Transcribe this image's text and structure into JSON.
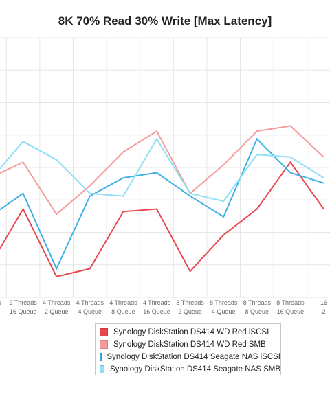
{
  "chart_data": {
    "type": "line",
    "title": "8K 70% Read 30% Write [Max Latency]",
    "categories": [
      [
        "Threads",
        "Queue"
      ],
      [
        "2 Threads",
        "16 Queue"
      ],
      [
        "4 Threads",
        "2 Queue"
      ],
      [
        "4 Threads",
        "4 Queue"
      ],
      [
        "4 Threads",
        "8 Queue"
      ],
      [
        "4 Threads",
        "16 Queue"
      ],
      [
        "8 Threads",
        "2 Queue"
      ],
      [
        "8 Threads",
        "4 Queue"
      ],
      [
        "8 Threads",
        "8 Queue"
      ],
      [
        "8 Threads",
        "16 Queue"
      ],
      [
        "16",
        "2"
      ]
    ],
    "ylim": [
      0,
      10
    ],
    "grid": true,
    "legend_position": "bottom",
    "series": [
      {
        "name": "Synology DiskStation DS414 WD Red iSCSI",
        "color": "#e8474f",
        "values": [
          1.2,
          3.4,
          0.8,
          1.1,
          3.3,
          3.4,
          1.0,
          2.4,
          3.4,
          5.2,
          3.4
        ]
      },
      {
        "name": "Synology DiskStation DS414 WD Red SMB",
        "color": "#f59b9b",
        "values": [
          4.6,
          5.2,
          3.2,
          4.3,
          5.6,
          6.4,
          4.0,
          5.1,
          6.4,
          6.6,
          5.4
        ]
      },
      {
        "name": "Synology DiskStation DS414 Seagate NAS iSCSI",
        "color": "#3fb0e4",
        "values": [
          3.1,
          4.0,
          1.1,
          3.9,
          4.6,
          4.8,
          3.9,
          3.1,
          6.1,
          4.8,
          4.4
        ]
      },
      {
        "name": "Synology DiskStation DS414 Seagate NAS SMB",
        "color": "#8ddff5",
        "values": [
          4.5,
          6.0,
          5.3,
          4.0,
          3.9,
          6.1,
          4.0,
          3.7,
          5.5,
          5.4,
          4.6
        ]
      }
    ]
  }
}
